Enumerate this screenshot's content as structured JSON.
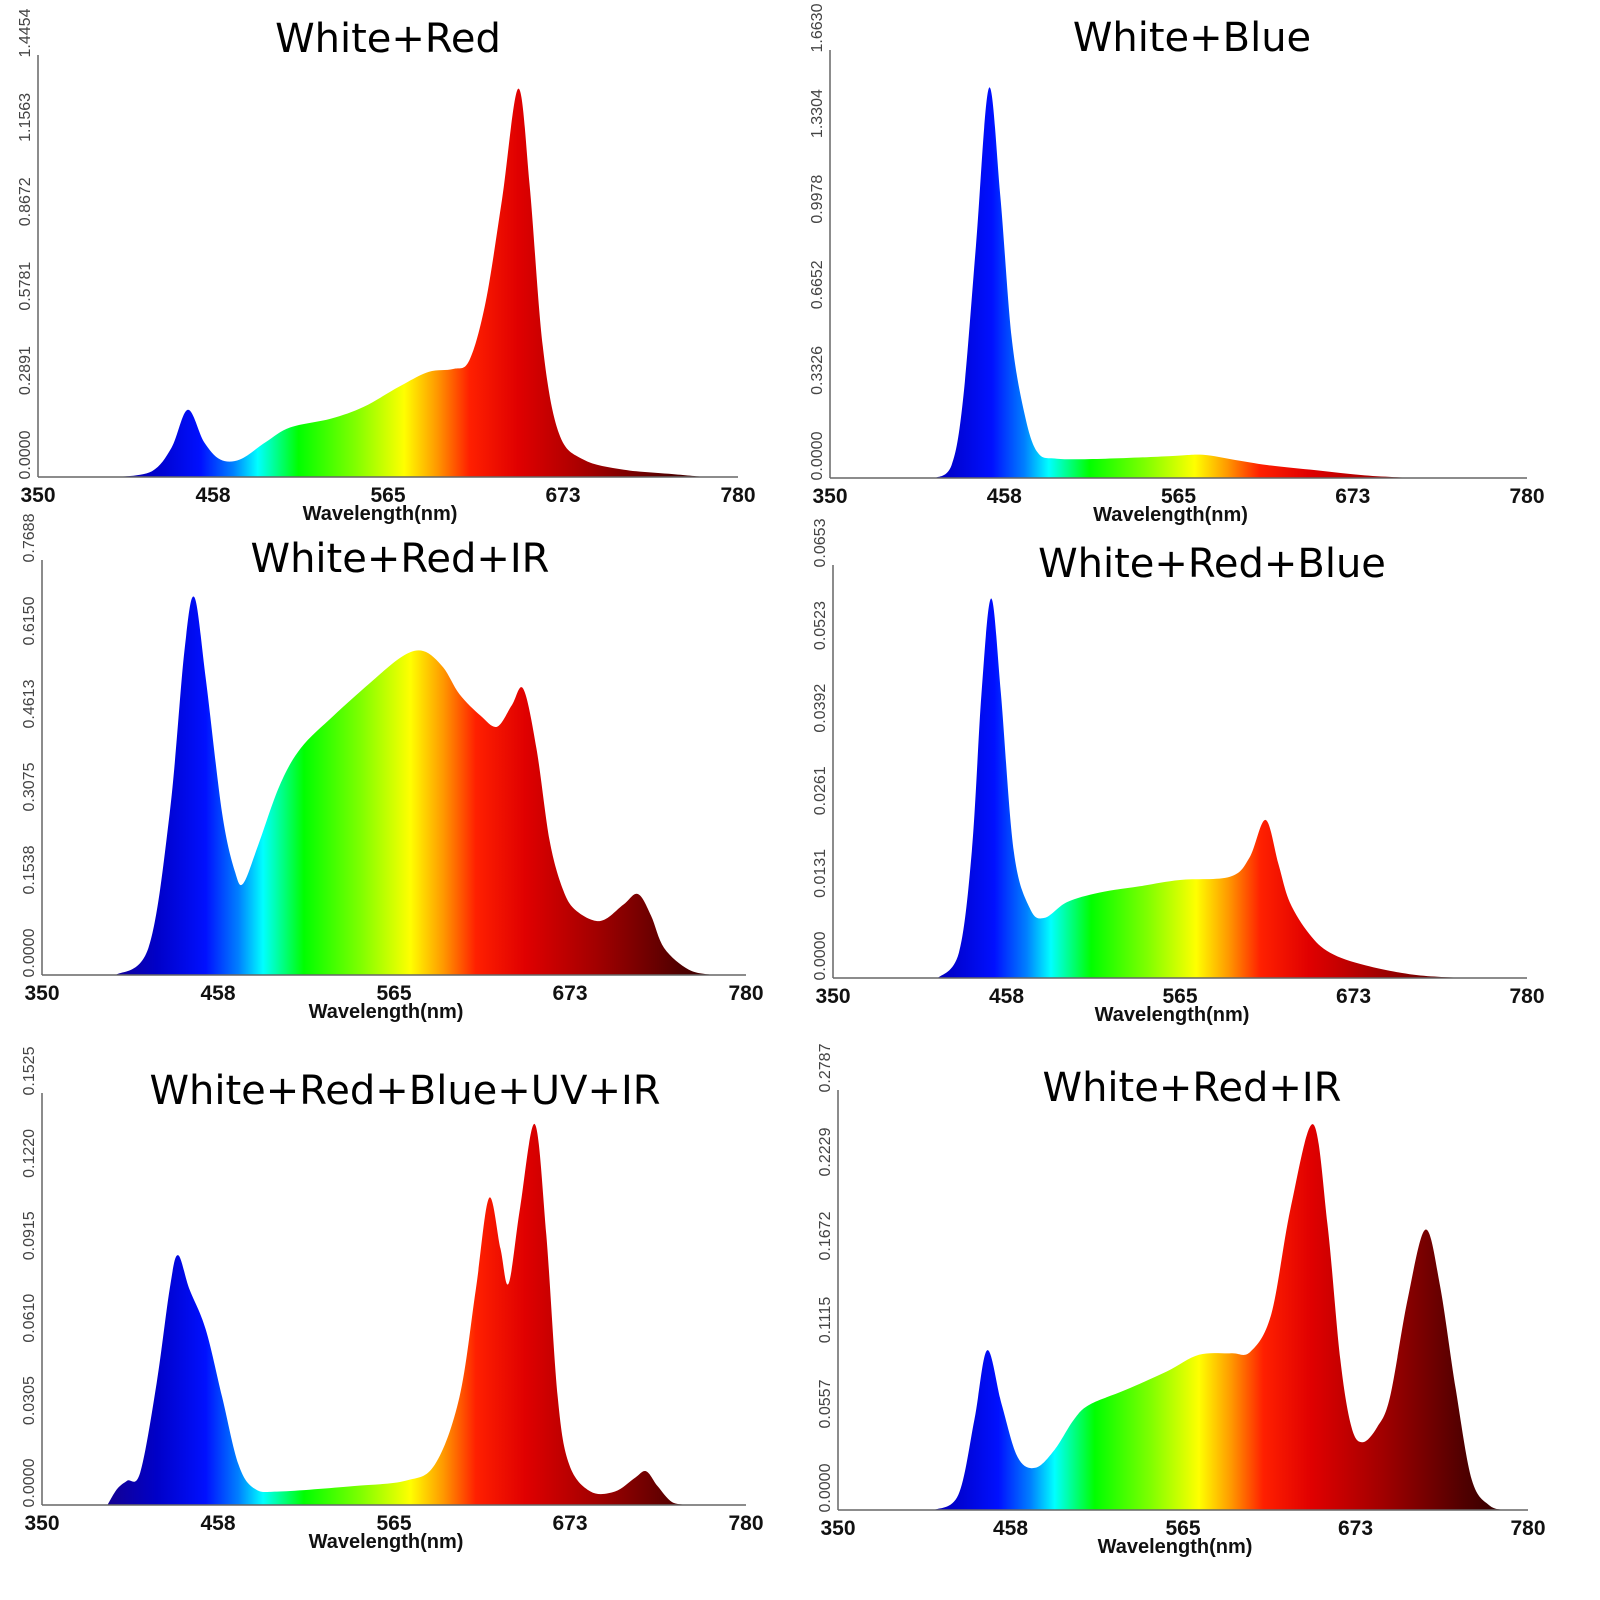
{
  "chart_data": [
    {
      "type": "area",
      "title": "White+Red",
      "xlabel": "Wavelength(nm)",
      "xlim": [
        350,
        780
      ],
      "xticks": [
        "350",
        "458",
        "565",
        "673",
        "780"
      ],
      "yticks": [
        "0.0000",
        "0.2891",
        "0.5781",
        "0.8672",
        "1.1563",
        "1.4454"
      ],
      "ylim": [
        0,
        1.4454
      ],
      "points": [
        [
          400,
          0
        ],
        [
          420,
          0.02
        ],
        [
          432,
          0.1
        ],
        [
          442,
          0.23
        ],
        [
          452,
          0.12
        ],
        [
          462,
          0.06
        ],
        [
          474,
          0.06
        ],
        [
          490,
          0.12
        ],
        [
          505,
          0.17
        ],
        [
          530,
          0.2
        ],
        [
          550,
          0.24
        ],
        [
          572,
          0.31
        ],
        [
          590,
          0.36
        ],
        [
          605,
          0.37
        ],
        [
          615,
          0.4
        ],
        [
          625,
          0.6
        ],
        [
          635,
          0.95
        ],
        [
          645,
          1.33
        ],
        [
          652,
          1.0
        ],
        [
          660,
          0.45
        ],
        [
          670,
          0.15
        ],
        [
          685,
          0.06
        ],
        [
          710,
          0.025
        ],
        [
          740,
          0.01
        ],
        [
          760,
          0
        ]
      ]
    },
    {
      "type": "area",
      "title": "White+Blue",
      "xlabel": "Wavelength(nm)",
      "xlim": [
        350,
        780
      ],
      "xticks": [
        "350",
        "458",
        "565",
        "673",
        "780"
      ],
      "yticks": [
        "0.0000",
        "0.3326",
        "0.6652",
        "0.9978",
        "1.3304",
        "1.6630"
      ],
      "ylim": [
        0,
        1.663
      ],
      "points": [
        [
          415,
          0
        ],
        [
          425,
          0.05
        ],
        [
          432,
          0.3
        ],
        [
          440,
          0.9
        ],
        [
          448,
          1.515
        ],
        [
          455,
          1.1
        ],
        [
          462,
          0.55
        ],
        [
          470,
          0.25
        ],
        [
          478,
          0.1
        ],
        [
          490,
          0.075
        ],
        [
          520,
          0.075
        ],
        [
          560,
          0.085
        ],
        [
          580,
          0.09
        ],
        [
          600,
          0.07
        ],
        [
          620,
          0.05
        ],
        [
          650,
          0.03
        ],
        [
          680,
          0.01
        ],
        [
          710,
          0
        ]
      ]
    },
    {
      "type": "area",
      "title": "White+Red+IR",
      "xlabel": "Wavelength(nm)",
      "xlim": [
        350,
        780
      ],
      "xticks": [
        "350",
        "458",
        "565",
        "673",
        "780"
      ],
      "yticks": [
        "0.0000",
        "0.1538",
        "0.3075",
        "0.4613",
        "0.6150",
        "0.7688"
      ],
      "ylim": [
        0,
        0.7688
      ],
      "points": [
        [
          395,
          0
        ],
        [
          415,
          0.05
        ],
        [
          428,
          0.3
        ],
        [
          437,
          0.6
        ],
        [
          443,
          0.7
        ],
        [
          450,
          0.55
        ],
        [
          460,
          0.3
        ],
        [
          468,
          0.19
        ],
        [
          473,
          0.17
        ],
        [
          482,
          0.24
        ],
        [
          495,
          0.35
        ],
        [
          508,
          0.42
        ],
        [
          528,
          0.48
        ],
        [
          550,
          0.54
        ],
        [
          570,
          0.59
        ],
        [
          583,
          0.6
        ],
        [
          595,
          0.57
        ],
        [
          605,
          0.52
        ],
        [
          618,
          0.48
        ],
        [
          628,
          0.46
        ],
        [
          637,
          0.5
        ],
        [
          644,
          0.53
        ],
        [
          652,
          0.42
        ],
        [
          660,
          0.25
        ],
        [
          668,
          0.16
        ],
        [
          676,
          0.12
        ],
        [
          691,
          0.1
        ],
        [
          705,
          0.13
        ],
        [
          714,
          0.15
        ],
        [
          722,
          0.11
        ],
        [
          730,
          0.05
        ],
        [
          745,
          0.01
        ],
        [
          760,
          0
        ]
      ]
    },
    {
      "type": "area",
      "title": "White+Red+Blue",
      "xlabel": "Wavelength(nm)",
      "xlim": [
        350,
        780
      ],
      "xticks": [
        "350",
        "458",
        "565",
        "673",
        "780"
      ],
      "yticks": [
        "0.0000",
        "0.0131",
        "0.0261",
        "0.0392",
        "0.0523",
        "0.0653"
      ],
      "ylim": [
        0,
        0.0653
      ],
      "points": [
        [
          415,
          0
        ],
        [
          428,
          0.004
        ],
        [
          436,
          0.02
        ],
        [
          442,
          0.045
        ],
        [
          448,
          0.06
        ],
        [
          454,
          0.045
        ],
        [
          462,
          0.02
        ],
        [
          472,
          0.011
        ],
        [
          481,
          0.0095
        ],
        [
          495,
          0.012
        ],
        [
          515,
          0.0135
        ],
        [
          540,
          0.0145
        ],
        [
          565,
          0.0155
        ],
        [
          596,
          0.016
        ],
        [
          608,
          0.019
        ],
        [
          618,
          0.025
        ],
        [
          626,
          0.018
        ],
        [
          633,
          0.012
        ],
        [
          645,
          0.007
        ],
        [
          658,
          0.004
        ],
        [
          680,
          0.002
        ],
        [
          710,
          0.0005
        ],
        [
          740,
          0
        ]
      ]
    },
    {
      "type": "area",
      "title": "White+Red+Blue+UV+IR",
      "xlabel": "Wavelength(nm)",
      "xlim": [
        350,
        780
      ],
      "xticks": [
        "350",
        "458",
        "565",
        "673",
        "780"
      ],
      "yticks": [
        "0.0000",
        "0.0305",
        "0.0610",
        "0.0915",
        "0.1220",
        "0.1525"
      ],
      "ylim": [
        0,
        0.1525
      ],
      "points": [
        [
          390,
          0
        ],
        [
          396,
          0.006
        ],
        [
          402,
          0.009
        ],
        [
          410,
          0.012
        ],
        [
          420,
          0.045
        ],
        [
          428,
          0.08
        ],
        [
          433,
          0.0925
        ],
        [
          440,
          0.08
        ],
        [
          450,
          0.065
        ],
        [
          460,
          0.04
        ],
        [
          470,
          0.015
        ],
        [
          480,
          0.006
        ],
        [
          495,
          0.005
        ],
        [
          540,
          0.007
        ],
        [
          572,
          0.009
        ],
        [
          590,
          0.015
        ],
        [
          605,
          0.04
        ],
        [
          615,
          0.08
        ],
        [
          623,
          0.1136
        ],
        [
          630,
          0.095
        ],
        [
          635,
          0.082
        ],
        [
          642,
          0.11
        ],
        [
          651,
          0.141
        ],
        [
          658,
          0.1
        ],
        [
          665,
          0.04
        ],
        [
          672,
          0.015
        ],
        [
          685,
          0.005
        ],
        [
          700,
          0.005
        ],
        [
          712,
          0.01
        ],
        [
          719,
          0.0125
        ],
        [
          726,
          0.007
        ],
        [
          735,
          0.001
        ],
        [
          745,
          0
        ]
      ]
    },
    {
      "type": "area",
      "title": "White+Red+IR",
      "xlabel": "Wavelength(nm)",
      "xlim": [
        350,
        780
      ],
      "xticks": [
        "350",
        "458",
        "565",
        "673",
        "780"
      ],
      "yticks": [
        "0.0000",
        "0.0557",
        "0.1115",
        "0.1672",
        "0.2229",
        "0.2787"
      ],
      "ylim": [
        0,
        0.2787
      ],
      "points": [
        [
          410,
          0
        ],
        [
          425,
          0.01
        ],
        [
          435,
          0.06
        ],
        [
          443,
          0.106
        ],
        [
          452,
          0.07
        ],
        [
          462,
          0.035
        ],
        [
          473,
          0.028
        ],
        [
          485,
          0.04
        ],
        [
          497,
          0.06
        ],
        [
          507,
          0.07
        ],
        [
          530,
          0.08
        ],
        [
          555,
          0.092
        ],
        [
          575,
          0.103
        ],
        [
          595,
          0.104
        ],
        [
          607,
          0.105
        ],
        [
          620,
          0.13
        ],
        [
          632,
          0.2
        ],
        [
          646,
          0.256
        ],
        [
          655,
          0.19
        ],
        [
          663,
          0.1
        ],
        [
          670,
          0.055
        ],
        [
          677,
          0.045
        ],
        [
          686,
          0.055
        ],
        [
          694,
          0.075
        ],
        [
          705,
          0.14
        ],
        [
          716,
          0.186
        ],
        [
          725,
          0.15
        ],
        [
          735,
          0.08
        ],
        [
          745,
          0.02
        ],
        [
          756,
          0.003
        ],
        [
          765,
          0
        ]
      ]
    }
  ],
  "colors": {
    "spectrum": [
      [
        380,
        "#1a0080"
      ],
      [
        420,
        "#0000c8"
      ],
      [
        450,
        "#0010ff"
      ],
      [
        470,
        "#0080ff"
      ],
      [
        485,
        "#00ffff"
      ],
      [
        510,
        "#00ff00"
      ],
      [
        545,
        "#80ff00"
      ],
      [
        575,
        "#ffff00"
      ],
      [
        595,
        "#ff9900"
      ],
      [
        615,
        "#ff2000"
      ],
      [
        645,
        "#e00000"
      ],
      [
        690,
        "#a00000"
      ],
      [
        740,
        "#500000"
      ],
      [
        780,
        "#200000"
      ]
    ]
  }
}
